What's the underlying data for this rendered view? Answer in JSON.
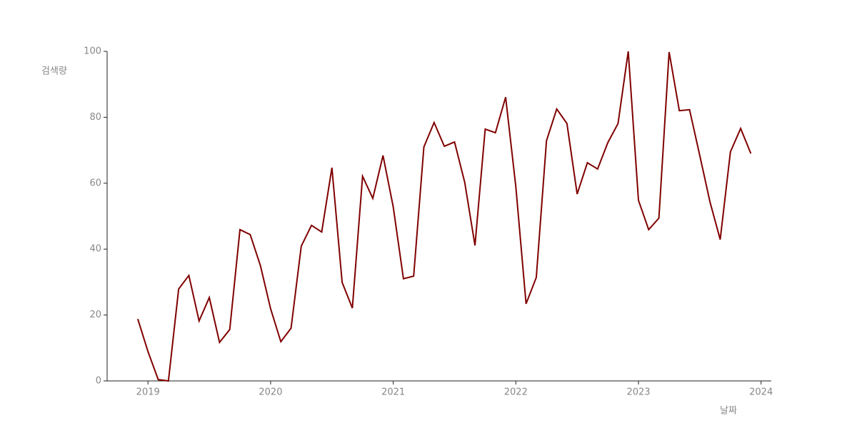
{
  "chart_data": {
    "type": "line",
    "x_label": "날짜",
    "y_label": "검색량",
    "x": [
      "2018-12",
      "2019-01",
      "2019-02",
      "2019-03",
      "2019-04",
      "2019-05",
      "2019-06",
      "2019-07",
      "2019-08",
      "2019-09",
      "2019-10",
      "2019-11",
      "2019-12",
      "2020-01",
      "2020-02",
      "2020-03",
      "2020-04",
      "2020-05",
      "2020-06",
      "2020-07",
      "2020-08",
      "2020-09",
      "2020-10",
      "2020-11",
      "2020-12",
      "2021-01",
      "2021-02",
      "2021-03",
      "2021-04",
      "2021-05",
      "2021-06",
      "2021-07",
      "2021-08",
      "2021-09",
      "2021-10",
      "2021-11",
      "2021-12",
      "2022-01",
      "2022-02",
      "2022-03",
      "2022-04",
      "2022-05",
      "2022-06",
      "2022-07",
      "2022-08",
      "2022-09",
      "2022-10",
      "2022-11",
      "2022-12",
      "2023-01",
      "2023-02",
      "2023-03",
      "2023-04",
      "2023-05",
      "2023-06",
      "2023-07",
      "2023-08",
      "2023-09",
      "2023-10",
      "2023-11",
      "2023-12"
    ],
    "series": [
      {
        "color": "#800000",
        "values": [
          18.8,
          8.9,
          0.4,
          0,
          27.9,
          32,
          18.2,
          25.3,
          11.7,
          15.6,
          45.9,
          44.4,
          35,
          21.9,
          11.9,
          16,
          40.9,
          47.2,
          45.2,
          64.7,
          29.9,
          22.1,
          62.1,
          55.4,
          68.4,
          52.8,
          31,
          31.8,
          71,
          78.4,
          71.2,
          72.5,
          60.2,
          41.1,
          76.4,
          75.3,
          86.1,
          58.9,
          23.4,
          31.4,
          72.9,
          82.5,
          78.1,
          56.7,
          66.2,
          64.3,
          72.3,
          78.1,
          100,
          54.8,
          45.9,
          49.4,
          99.8,
          82,
          82.3,
          68.4,
          54.3,
          42.9,
          69.5,
          76.6,
          69
        ]
      }
    ],
    "xlim": [
      "2018-09",
      "2024-02"
    ],
    "xticks": [
      "2019",
      "2020",
      "2021",
      "2022",
      "2023",
      "2024"
    ],
    "ylim": [
      0,
      100
    ],
    "yticks": [
      0,
      20,
      40,
      60,
      80,
      100
    ],
    "grid": false
  }
}
